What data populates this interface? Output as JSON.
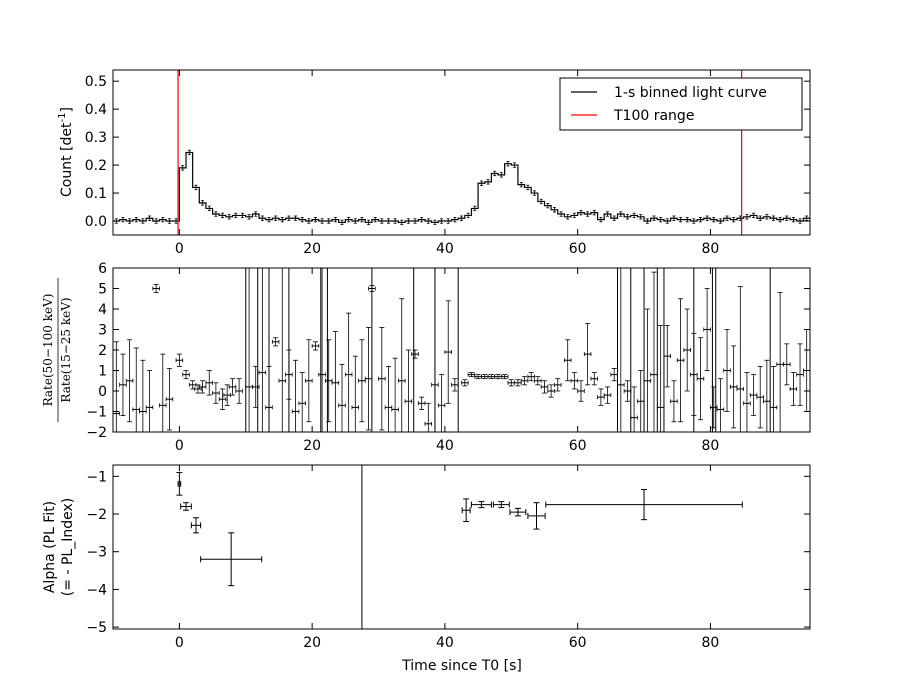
{
  "chart_data": [
    {
      "type": "line",
      "subtype": "step",
      "ylabel_text": "Count [det",
      "ylabel_sup": "-1",
      "ylabel_end": "]",
      "xlim": [
        -10,
        95
      ],
      "ylim": [
        -0.05,
        0.54
      ],
      "xticks": [
        "0",
        "20",
        "40",
        "60",
        "80"
      ],
      "yticks": [
        "0.0",
        "0.1",
        "0.2",
        "0.3",
        "0.4",
        "0.5"
      ],
      "xtick_values": [
        0,
        20,
        40,
        60,
        80
      ],
      "ytick_values": [
        0.0,
        0.1,
        0.2,
        0.3,
        0.4,
        0.5
      ],
      "legend_position": "top-right",
      "legend": [
        {
          "label": "1-s binned light curve",
          "color": "#000000"
        },
        {
          "label": "T100 range",
          "color": "#ff0000"
        }
      ],
      "t100_range": [
        -0.2,
        84.7
      ],
      "bin_width": 1,
      "x_start": -10,
      "counts": [
        0.0,
        0.005,
        0.0,
        0.005,
        0.0,
        0.01,
        0.0,
        0.005,
        0.0,
        0.0,
        0.19,
        0.245,
        0.12,
        0.065,
        0.045,
        0.025,
        0.02,
        0.015,
        0.02,
        0.02,
        0.015,
        0.025,
        0.01,
        0.005,
        0.01,
        0.005,
        0.01,
        0.01,
        0.005,
        0.0,
        0.005,
        0.0,
        0.0,
        0.005,
        -0.005,
        0.005,
        0.0,
        0.005,
        -0.005,
        0.005,
        0.0,
        0.0,
        0.0,
        -0.005,
        0.0,
        0.0,
        0.005,
        0.0,
        -0.005,
        0.0,
        0.0,
        0.005,
        0.01,
        0.02,
        0.045,
        0.135,
        0.14,
        0.17,
        0.165,
        0.205,
        0.2,
        0.13,
        0.12,
        0.1,
        0.07,
        0.055,
        0.04,
        0.025,
        0.015,
        0.02,
        0.03,
        0.025,
        0.03,
        0.005,
        0.025,
        0.01,
        0.025,
        0.015,
        0.02,
        0.015,
        0.0,
        0.01,
        0.005,
        0.0,
        0.01,
        0.005,
        0.005,
        0.0,
        0.005,
        0.01,
        0.005,
        0.0,
        0.01,
        0.005,
        0.01,
        0.015,
        0.02,
        0.01,
        0.015,
        0.01,
        0.005,
        0.01,
        0.005,
        0.0,
        0.01
      ],
      "error": 0.008
    },
    {
      "type": "scatter",
      "ylabel_num": "Rate(50−100 keV)",
      "ylabel_den": "Rate(15−25 keV)",
      "xlim": [
        -10,
        95
      ],
      "ylim": [
        -2,
        6
      ],
      "xticks": [
        "0",
        "20",
        "40",
        "60",
        "80"
      ],
      "yticks": [
        "−2",
        "−1",
        "0",
        "1",
        "2",
        "3",
        "4",
        "5",
        "6"
      ],
      "xtick_values": [
        0,
        20,
        40,
        60,
        80
      ],
      "ytick_values": [
        -2,
        -1,
        0,
        1,
        2,
        3,
        4,
        5,
        6
      ],
      "points": [
        [
          -9.5,
          -1.1,
          3.5
        ],
        [
          -8.5,
          0.3,
          1.5
        ],
        [
          -7.5,
          0.5,
          2.0
        ],
        [
          -6.5,
          -0.9,
          3.0
        ],
        [
          -5.5,
          -1.0,
          2.5
        ],
        [
          -4.5,
          -0.8,
          1.8
        ],
        [
          -3.5,
          5.0,
          0.2
        ],
        [
          -2.5,
          -0.7,
          2.5
        ],
        [
          -1.5,
          -0.4,
          1.5
        ],
        [
          0.0,
          1.5,
          0.3
        ],
        [
          1.0,
          0.8,
          0.2
        ],
        [
          2.0,
          0.3,
          0.2
        ],
        [
          2.8,
          0.1,
          0.2
        ],
        [
          3.5,
          0.2,
          0.3
        ],
        [
          4.5,
          0.4,
          0.6
        ],
        [
          5.5,
          -0.1,
          0.5
        ],
        [
          6.5,
          -0.4,
          0.5
        ],
        [
          7.2,
          -0.2,
          0.5
        ],
        [
          8.0,
          0.2,
          0.4
        ],
        [
          9.0,
          0.0,
          0.6
        ],
        [
          10.5,
          0.2,
          8.0
        ],
        [
          11.5,
          0.2,
          1.0
        ],
        [
          12.5,
          0.9,
          8.0
        ],
        [
          13.5,
          -0.8,
          2.0
        ],
        [
          14.5,
          2.4,
          0.2
        ],
        [
          15.5,
          0.5,
          8.0
        ],
        [
          16.5,
          0.8,
          1.2
        ],
        [
          17.5,
          -1.0,
          2.5
        ],
        [
          18.5,
          -0.6,
          1.5
        ],
        [
          19.5,
          0.5,
          2.0
        ],
        [
          20.5,
          2.2,
          0.2
        ],
        [
          21.5,
          0.8,
          8.0
        ],
        [
          22.5,
          0.5,
          2.0
        ],
        [
          23.5,
          0.4,
          2.5
        ],
        [
          24.5,
          -0.7,
          2.0
        ],
        [
          25.5,
          0.8,
          3.0
        ],
        [
          26.5,
          -0.8,
          2.5
        ],
        [
          27.5,
          0.5,
          2.0
        ],
        [
          28.5,
          0.6,
          2.5
        ],
        [
          29.0,
          5.0,
          0.15
        ],
        [
          30.5,
          0.6,
          2.5
        ],
        [
          31.5,
          -0.8,
          2.0
        ],
        [
          32.5,
          -0.9,
          2.5
        ],
        [
          33.5,
          0.5,
          4.0
        ],
        [
          34.5,
          -0.5,
          2.5
        ],
        [
          35.5,
          1.8,
          0.2
        ],
        [
          36.5,
          -0.6,
          0.3
        ],
        [
          37.5,
          -1.6,
          1.0
        ],
        [
          38.5,
          0.3,
          8.0
        ],
        [
          39.5,
          -0.7,
          1.5
        ],
        [
          40.5,
          1.9,
          2.5
        ],
        [
          41.5,
          0.3,
          0.3
        ],
        [
          43.0,
          0.4,
          0.15
        ],
        [
          44.0,
          0.8,
          0.1
        ],
        [
          45.0,
          0.7,
          0.1
        ],
        [
          46.0,
          0.7,
          0.1
        ],
        [
          47.0,
          0.7,
          0.1
        ],
        [
          48.0,
          0.7,
          0.1
        ],
        [
          49.0,
          0.7,
          0.1
        ],
        [
          50.0,
          0.4,
          0.15
        ],
        [
          51.0,
          0.4,
          0.15
        ],
        [
          52.0,
          0.5,
          0.2
        ],
        [
          53.0,
          0.7,
          0.2
        ],
        [
          54.0,
          0.5,
          0.2
        ],
        [
          55.0,
          0.2,
          0.3
        ],
        [
          56.0,
          0.0,
          0.3
        ],
        [
          57.0,
          0.3,
          0.3
        ],
        [
          58.5,
          1.5,
          1.0
        ],
        [
          59.5,
          0.5,
          0.4
        ],
        [
          60.5,
          0.0,
          0.5
        ],
        [
          61.5,
          1.8,
          1.5
        ],
        [
          62.5,
          0.6,
          0.3
        ],
        [
          63.5,
          -0.3,
          0.4
        ],
        [
          64.5,
          -0.2,
          0.4
        ],
        [
          65.5,
          0.8,
          0.3
        ],
        [
          66.5,
          0.3,
          6.0
        ],
        [
          67.5,
          0.0,
          0.5
        ],
        [
          68.5,
          -1.3,
          1.5
        ],
        [
          69.5,
          -0.5,
          1.5
        ],
        [
          70.5,
          0.5,
          3.5
        ],
        [
          71.5,
          0.8,
          5.0
        ],
        [
          72.5,
          -0.8,
          4.0
        ],
        [
          73.5,
          1.7,
          1.5
        ],
        [
          74.5,
          -0.5,
          1.0
        ],
        [
          75.5,
          1.5,
          3.0
        ],
        [
          76.5,
          2.0,
          2.0
        ],
        [
          77.5,
          0.8,
          2.0
        ],
        [
          78.5,
          0.6,
          2.0
        ],
        [
          79.5,
          3.0,
          2.0
        ],
        [
          80.5,
          -0.8,
          1.0
        ],
        [
          81.5,
          -0.9,
          1.5
        ],
        [
          82.5,
          1.0,
          2.0
        ],
        [
          83.5,
          0.2,
          2.0
        ],
        [
          84.5,
          0.1,
          5.0
        ],
        [
          85.5,
          -0.6,
          1.5
        ],
        [
          86.5,
          -0.2,
          1.0
        ],
        [
          87.5,
          -0.3,
          1.5
        ],
        [
          88.5,
          -0.5,
          2.0
        ],
        [
          89.5,
          -0.8,
          2.0
        ],
        [
          90.5,
          1.3,
          3.5
        ],
        [
          91.5,
          1.3,
          1.0
        ],
        [
          92.5,
          0.1,
          0.8
        ],
        [
          93.5,
          0.8,
          1.5
        ],
        [
          94.5,
          1.0,
          2.0
        ]
      ],
      "full_height_lines": [
        10.0,
        11.8,
        13.5,
        16.5,
        21.3,
        22.3,
        29.0,
        35.3,
        38.5,
        42.0,
        66.0,
        68.0,
        70.0,
        72.0,
        73.0,
        77.5,
        80.3,
        80.8,
        89.0
      ]
    },
    {
      "type": "scatter",
      "ylabel_line1": "Alpha (PL Fit)",
      "ylabel_line2": "(= - PL_Index)",
      "xlabel": "Time since T0 [s]",
      "xlim": [
        -10,
        95
      ],
      "ylim": [
        -5.05,
        -0.7
      ],
      "xticks": [
        "0",
        "20",
        "40",
        "60",
        "80"
      ],
      "yticks": [
        "−5",
        "−4",
        "−3",
        "−2",
        "−1"
      ],
      "xtick_values": [
        0,
        20,
        40,
        60,
        80
      ],
      "ytick_values": [
        -5,
        -4,
        -3,
        -2,
        -1
      ],
      "points": [
        {
          "x": 0.0,
          "xerr": 0.2,
          "y": -1.2,
          "yerr": 0.3
        },
        {
          "x": 1.0,
          "xerr": 0.8,
          "y": -1.8,
          "yerr": 0.1
        },
        {
          "x": 2.5,
          "xerr": 0.7,
          "y": -2.3,
          "yerr": 0.2
        },
        {
          "x": 7.8,
          "xerr": 4.6,
          "y": -3.2,
          "yerr": 0.7
        },
        {
          "x": 43.2,
          "xerr": 0.6,
          "y": -1.9,
          "yerr": 0.3
        },
        {
          "x": 45.5,
          "xerr": 1.5,
          "y": -1.75,
          "yerr": 0.08
        },
        {
          "x": 48.5,
          "xerr": 1.2,
          "y": -1.75,
          "yerr": 0.08
        },
        {
          "x": 51.0,
          "xerr": 1.2,
          "y": -1.95,
          "yerr": 0.1
        },
        {
          "x": 53.8,
          "xerr": 1.3,
          "y": -2.05,
          "yerr": 0.35
        },
        {
          "x": 70.0,
          "xerr": 14.8,
          "y": -1.75,
          "yerr": 0.4
        }
      ],
      "vline": 27.5
    }
  ]
}
